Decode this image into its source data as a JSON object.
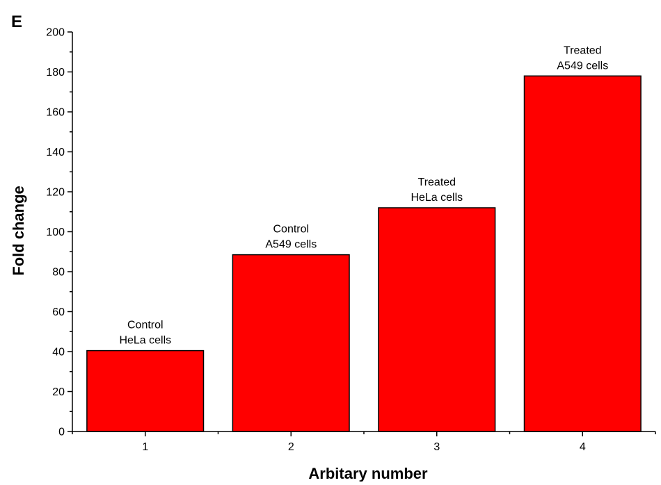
{
  "panel_label": "E",
  "chart_data": {
    "type": "bar",
    "title": "",
    "xlabel": "Arbitary number",
    "ylabel": "Fold change",
    "ylim": [
      0,
      200
    ],
    "y_ticks": [
      "0",
      "20",
      "40",
      "60",
      "80",
      "100",
      "120",
      "140",
      "160",
      "180",
      "200"
    ],
    "y_tick_values": [
      0,
      20,
      40,
      60,
      80,
      100,
      120,
      140,
      160,
      180,
      200
    ],
    "y_minor_step": 10,
    "categories": [
      "1",
      "2",
      "3",
      "4"
    ],
    "values": [
      40.5,
      88.5,
      112,
      178
    ],
    "bar_labels": [
      [
        "Control",
        "HeLa cells"
      ],
      [
        "Control",
        "A549 cells"
      ],
      [
        "Treated",
        "HeLa cells"
      ],
      [
        "Treated",
        "A549 cells"
      ]
    ],
    "bar_color": "#ff0000",
    "grid": false,
    "legend": "none"
  }
}
